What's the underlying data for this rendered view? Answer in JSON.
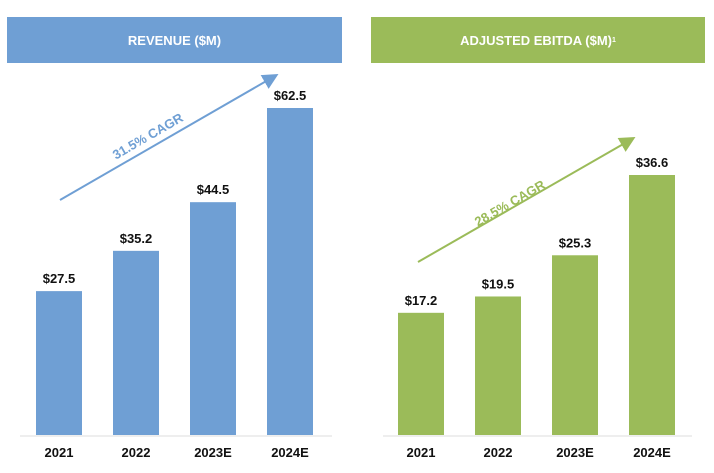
{
  "chart_data": [
    {
      "type": "bar",
      "title": "REVENUE ($M)",
      "color": "#6f9fd4",
      "categories": [
        "2021",
        "2022",
        "2023E",
        "2024E"
      ],
      "values": [
        27.5,
        35.2,
        44.5,
        62.5
      ],
      "data_labels": [
        "$27.5",
        "$35.2",
        "$44.5",
        "$62.5"
      ],
      "annotation": "31.5% CAGR",
      "ylim": [
        0,
        62.5
      ],
      "grid": false
    },
    {
      "type": "bar",
      "title": "ADJUSTED EBITDA ($M)",
      "title_sup": "1",
      "color": "#9bbb59",
      "categories": [
        "2021",
        "2022",
        "2023E",
        "2024E"
      ],
      "values": [
        17.2,
        19.5,
        25.3,
        36.6
      ],
      "data_labels": [
        "$17.2",
        "$19.5",
        "$25.3",
        "$36.6"
      ],
      "annotation": "28.5% CAGR",
      "ylim": [
        0,
        36.6
      ],
      "grid": false
    }
  ]
}
